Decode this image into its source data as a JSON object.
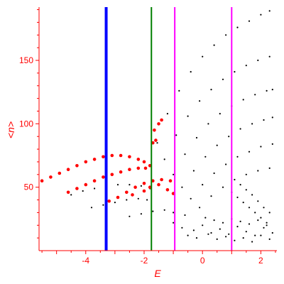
{
  "chart_data": {
    "type": "scatter",
    "xlabel": "E",
    "ylabel": "<n>",
    "xlim": [
      -5.6,
      2.55
    ],
    "ylim": [
      0,
      192
    ],
    "x_ticks": [
      -4,
      -2,
      0,
      2
    ],
    "y_ticks": [
      50,
      100,
      150
    ],
    "colors": {
      "axes": "#ff0000",
      "red_points": "#ff0000",
      "black_points": "#000000",
      "blue_line": "#0000ff",
      "green_line": "#008000",
      "magenta_line": "#ff00ff"
    },
    "vertical_lines": [
      {
        "x": -3.3,
        "color": "#0000ff",
        "width": "thick"
      },
      {
        "x": -1.75,
        "color": "#008000",
        "width": "thin"
      },
      {
        "x": -0.95,
        "color": "#ff00ff",
        "width": "thin"
      },
      {
        "x": 1.0,
        "color": "#ff00ff",
        "width": "thin"
      }
    ],
    "red_series": [
      {
        "x": [
          -5.5,
          -5.2,
          -4.9,
          -4.6,
          -4.3,
          -4.0,
          -3.7,
          -3.4,
          -3.1,
          -2.8,
          -2.5,
          -2.2,
          -2.0,
          -1.8
        ],
        "y": [
          55,
          58,
          61,
          64,
          67,
          70,
          72,
          74,
          75,
          75,
          74,
          72,
          70,
          67
        ]
      },
      {
        "x": [
          -4.6,
          -4.3,
          -4.0,
          -3.7,
          -3.4,
          -3.1,
          -2.8,
          -2.5,
          -2.2,
          -1.95
        ],
        "y": [
          46,
          49,
          52,
          55,
          58,
          60,
          62,
          64,
          65,
          65
        ]
      },
      {
        "x": [
          -3.2,
          -2.9,
          -2.6,
          -2.3,
          -2.0,
          -1.7,
          -1.4,
          -1.1
        ],
        "y": [
          39,
          42,
          46,
          50,
          53,
          55,
          56,
          55
        ]
      },
      {
        "x": [
          -1.7,
          -1.6,
          -1.65,
          -1.5,
          -1.4
        ],
        "y": [
          85,
          87,
          95,
          100,
          103
        ]
      },
      {
        "x": [
          -2.4,
          -2.0,
          -1.8,
          -1.5,
          -1.2,
          -1.0
        ],
        "y": [
          44,
          47,
          50,
          52,
          48,
          45
        ]
      }
    ],
    "black_series": [
      {
        "x": [
          -1.55,
          -1.2,
          -0.8,
          -0.4,
          0.0,
          0.4,
          0.8,
          1.2,
          1.6,
          2.0,
          2.3
        ],
        "y": [
          85,
          108,
          126,
          141,
          153,
          162,
          170,
          176,
          181,
          186,
          189
        ]
      },
      {
        "x": [
          -1.3,
          -0.9,
          -0.5,
          -0.1,
          0.3,
          0.7,
          1.1,
          1.5,
          1.9,
          2.3
        ],
        "y": [
          72,
          91,
          106,
          118,
          127,
          135,
          141,
          146,
          150,
          153
        ]
      },
      {
        "x": [
          -1.0,
          -0.6,
          -0.2,
          0.2,
          0.6,
          1.0,
          1.4,
          1.8,
          2.2,
          2.4
        ],
        "y": [
          60,
          76,
          89,
          100,
          108,
          114,
          119,
          123,
          126,
          127
        ]
      },
      {
        "x": [
          -0.7,
          -0.3,
          0.1,
          0.5,
          0.9,
          1.3,
          1.7,
          2.1,
          2.4
        ],
        "y": [
          50,
          63,
          74,
          83,
          90,
          96,
          100,
          103,
          105
        ]
      },
      {
        "x": [
          -0.4,
          0.0,
          0.4,
          0.8,
          1.2,
          1.6,
          2.0,
          2.4
        ],
        "y": [
          41,
          52,
          61,
          68,
          74,
          78,
          82,
          84
        ]
      },
      {
        "x": [
          -0.1,
          0.3,
          0.7,
          1.1,
          1.5,
          1.9,
          2.3
        ],
        "y": [
          34,
          43,
          50,
          56,
          60,
          63,
          65
        ]
      },
      {
        "x": [
          -4.5,
          -4.1,
          -3.7,
          -3.3,
          -2.9,
          -2.5,
          -2.1,
          -1.8
        ],
        "y": [
          44,
          47,
          49,
          51,
          52,
          52,
          51,
          49
        ]
      },
      {
        "x": [
          -3.8,
          -3.4,
          -3.0,
          -2.6,
          -2.2,
          -1.9
        ],
        "y": [
          34,
          36,
          38,
          40,
          41,
          40
        ]
      },
      {
        "x": [
          -2.5,
          -2.1,
          -1.7,
          -1.3,
          -1.0,
          -0.6
        ],
        "y": [
          27,
          29,
          31,
          32,
          30,
          28
        ]
      },
      {
        "x": [
          -1.0,
          -0.7,
          -0.3,
          0.0,
          0.3,
          0.6,
          0.9,
          1.2,
          1.5,
          1.8,
          2.1,
          2.4
        ],
        "y": [
          22,
          18,
          16,
          20,
          14,
          17,
          13,
          19,
          15,
          12,
          18,
          14
        ]
      },
      {
        "x": [
          -0.5,
          -0.2,
          0.2,
          0.5,
          0.8,
          1.1,
          1.4,
          1.7,
          2.0,
          2.3
        ],
        "y": [
          12,
          10,
          13,
          9,
          11,
          8,
          10,
          7,
          12,
          9
        ]
      },
      {
        "x": [
          0.1,
          0.4,
          0.7,
          1.0,
          1.3,
          1.6,
          1.9,
          2.2
        ],
        "y": [
          26,
          24,
          22,
          25,
          23,
          21,
          24,
          20
        ]
      },
      {
        "x": [
          1.3,
          1.5,
          1.7,
          1.9,
          2.1,
          2.3
        ],
        "y": [
          52,
          48,
          44,
          39,
          34,
          30
        ]
      },
      {
        "x": [
          1.0,
          1.2,
          1.4,
          1.6,
          1.8,
          2.0,
          2.2
        ],
        "y": [
          46,
          42,
          38,
          34,
          30,
          26,
          22
        ]
      }
    ]
  }
}
